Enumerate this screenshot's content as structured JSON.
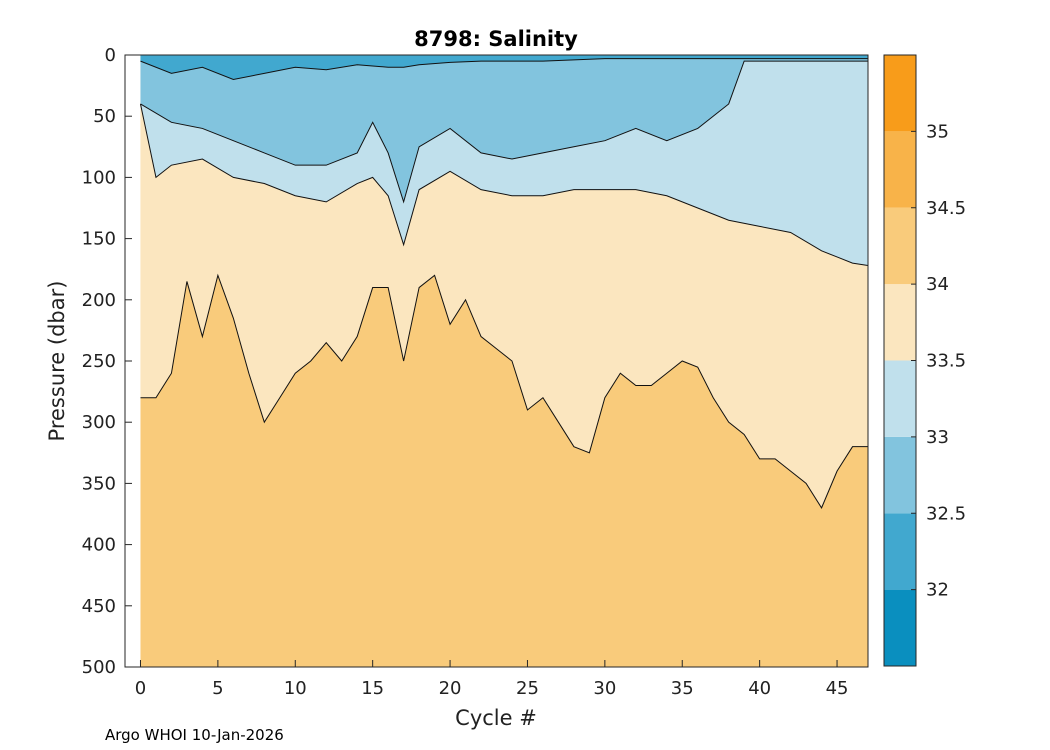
{
  "chart_data": {
    "type": "heatmap",
    "subtype": "filled-contour",
    "title": "8798:  Salinity",
    "xlabel": "Cycle #",
    "ylabel": "Pressure (dbar)",
    "xlim": [
      -1,
      47
    ],
    "ylim": [
      500,
      0
    ],
    "y_reversed": true,
    "x_ticks": [
      0,
      5,
      10,
      15,
      20,
      25,
      30,
      35,
      40,
      45
    ],
    "y_ticks": [
      0,
      50,
      100,
      150,
      200,
      250,
      300,
      350,
      400,
      450,
      500
    ],
    "colorbar": {
      "range": [
        31.5,
        35.5
      ],
      "levels": [
        {
          "min": 31.5,
          "max": 32.0,
          "color": "#0a8fbf"
        },
        {
          "min": 32.0,
          "max": 32.5,
          "color": "#41a8cf"
        },
        {
          "min": 32.5,
          "max": 33.0,
          "color": "#82c4de"
        },
        {
          "min": 33.0,
          "max": 33.5,
          "color": "#c0e0ec"
        },
        {
          "min": 33.5,
          "max": 34.0,
          "color": "#fbe6bf"
        },
        {
          "min": 34.0,
          "max": 34.5,
          "color": "#f9cb7b"
        },
        {
          "min": 34.5,
          "max": 35.0,
          "color": "#f8b349"
        },
        {
          "min": 35.0,
          "max": 35.5,
          "color": "#f89c1a"
        }
      ],
      "tick_labels": [
        "32",
        "32.5",
        "33",
        "33.5",
        "34",
        "34.5",
        "35"
      ]
    },
    "cycle_range": [
      0,
      47
    ],
    "contours": [
      {
        "level": 32.5,
        "above_color": "#41a8cf",
        "below_color": "#82c4de",
        "cycles": [
          0,
          2,
          4,
          6,
          8,
          10,
          12,
          14,
          16,
          17,
          18,
          20,
          22,
          24,
          26,
          28,
          30,
          32,
          34,
          36,
          38,
          40,
          42,
          44,
          47
        ],
        "depth": [
          5,
          15,
          10,
          20,
          15,
          10,
          12,
          8,
          10,
          10,
          8,
          6,
          5,
          5,
          5,
          4,
          3,
          3,
          3,
          3,
          3,
          3,
          3,
          3,
          3
        ]
      },
      {
        "level": 33.0,
        "above_color": "#82c4de",
        "below_color": "#c0e0ec",
        "cycles": [
          0,
          2,
          4,
          6,
          8,
          10,
          12,
          14,
          15,
          16,
          17,
          18,
          20,
          22,
          24,
          26,
          28,
          30,
          32,
          34,
          36,
          38,
          39,
          40,
          42,
          44,
          47
        ],
        "depth": [
          40,
          55,
          60,
          70,
          80,
          90,
          90,
          80,
          55,
          80,
          120,
          75,
          60,
          80,
          85,
          80,
          75,
          70,
          60,
          70,
          60,
          40,
          5,
          5,
          5,
          5,
          5
        ]
      },
      {
        "level": 33.5,
        "above_color": "#c0e0ec",
        "below_color": "#fbe6bf",
        "cycles": [
          0,
          1,
          2,
          4,
          6,
          8,
          10,
          12,
          14,
          15,
          16,
          17,
          18,
          20,
          22,
          24,
          26,
          28,
          30,
          32,
          34,
          36,
          38,
          40,
          42,
          44,
          45,
          46,
          47
        ],
        "depth": [
          40,
          100,
          90,
          85,
          100,
          105,
          115,
          120,
          105,
          100,
          115,
          155,
          110,
          95,
          110,
          115,
          115,
          110,
          110,
          110,
          115,
          125,
          135,
          140,
          145,
          160,
          165,
          170,
          172
        ]
      },
      {
        "level": 34.0,
        "above_color": "#fbe6bf",
        "below_color": "#f9cb7b",
        "cycles": [
          0,
          1,
          2,
          3,
          4,
          5,
          6,
          7,
          8,
          9,
          10,
          11,
          12,
          13,
          14,
          15,
          16,
          17,
          18,
          19,
          20,
          21,
          22,
          23,
          24,
          25,
          26,
          27,
          28,
          29,
          30,
          31,
          32,
          33,
          34,
          35,
          36,
          37,
          38,
          39,
          40,
          41,
          42,
          43,
          44,
          45,
          46,
          47
        ],
        "depth": [
          280,
          280,
          260,
          185,
          230,
          180,
          215,
          260,
          300,
          280,
          260,
          250,
          235,
          250,
          230,
          190,
          190,
          250,
          190,
          180,
          220,
          200,
          230,
          240,
          250,
          290,
          280,
          300,
          320,
          325,
          280,
          260,
          270,
          270,
          260,
          250,
          255,
          280,
          300,
          310,
          330,
          330,
          340,
          350,
          370,
          340,
          320,
          320
        ]
      }
    ]
  },
  "footer_text": "Argo WHOI 10-Jan-2026"
}
